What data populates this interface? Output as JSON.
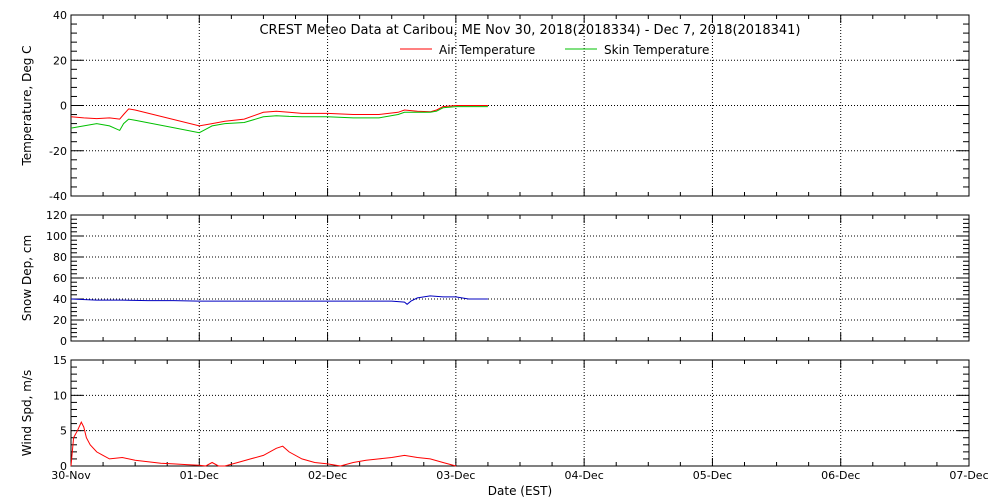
{
  "title": "CREST Meteo Data at Caribou, ME   Nov 30, 2018(2018334) - Dec  7, 2018(2018341)",
  "xlabel": "Date (EST)",
  "x_ticks": [
    "30-Nov",
    "01-Dec",
    "02-Dec",
    "03-Dec",
    "04-Dec",
    "05-Dec",
    "06-Dec",
    "07-Dec"
  ],
  "colors": {
    "air": "#ff0000",
    "skin": "#00c000",
    "snow": "#0000c0",
    "wind": "#ff0000",
    "axis": "#000000"
  },
  "chart_data": [
    {
      "type": "line",
      "ylabel": "Temperature, Deg C",
      "ylim": [
        -40,
        40
      ],
      "y_ticks": [
        "40",
        "20",
        "0",
        "-20",
        "-40"
      ],
      "xlim_days": [
        0,
        7
      ],
      "legend": "top-center",
      "grid": true,
      "series": [
        {
          "name": "Air Temperature",
          "x": [
            0,
            0.1,
            0.2,
            0.3,
            0.38,
            0.41,
            0.45,
            0.5,
            1.0,
            1.1,
            1.2,
            1.35,
            1.5,
            1.6,
            1.7,
            1.8,
            2.0,
            2.2,
            2.4,
            2.55,
            2.6,
            2.7,
            2.8,
            2.85,
            2.9,
            3.0,
            3.1,
            3.2,
            3.25
          ],
          "y": [
            -5,
            -5.5,
            -5.8,
            -5.5,
            -6,
            -4,
            -1.5,
            -2,
            -9,
            -8,
            -7,
            -6,
            -3,
            -2.5,
            -3,
            -3.5,
            -3.5,
            -4,
            -4,
            -3,
            -2,
            -2.5,
            -2.8,
            -2,
            -0.5,
            0,
            0,
            0,
            0
          ]
        },
        {
          "name": "Skin Temperature",
          "x": [
            0,
            0.1,
            0.2,
            0.3,
            0.38,
            0.41,
            0.45,
            0.5,
            1.0,
            1.1,
            1.2,
            1.35,
            1.5,
            1.6,
            1.7,
            1.8,
            2.0,
            2.2,
            2.4,
            2.55,
            2.6,
            2.7,
            2.8,
            2.85,
            2.9,
            3.0,
            3.1,
            3.2,
            3.25
          ],
          "y": [
            -10,
            -9,
            -8,
            -9,
            -11,
            -8,
            -6,
            -6.5,
            -12,
            -9,
            -8,
            -7.5,
            -5,
            -4.5,
            -4.8,
            -5,
            -5,
            -5.5,
            -5.5,
            -4,
            -3,
            -3,
            -3,
            -2.5,
            -1,
            -0.5,
            -0.5,
            -0.5,
            -0.5
          ]
        }
      ]
    },
    {
      "type": "line",
      "ylabel": "Snow Dep, cm",
      "ylim": [
        0,
        120
      ],
      "y_ticks": [
        "120",
        "100",
        "80",
        "60",
        "40",
        "20",
        "0"
      ],
      "xlim_days": [
        0,
        7
      ],
      "grid": true,
      "series": [
        {
          "x": [
            0,
            0.2,
            0.4,
            0.6,
            0.8,
            1.0,
            1.3,
            1.6,
            2.0,
            2.3,
            2.5,
            2.6,
            2.62,
            2.65,
            2.7,
            2.75,
            2.8,
            2.9,
            3.0,
            3.1,
            3.2,
            3.25
          ],
          "y": [
            40,
            39,
            39,
            38.5,
            38.5,
            38,
            38,
            38,
            38,
            38,
            38,
            37,
            35,
            38,
            41,
            42,
            43,
            42,
            42,
            40,
            40,
            40
          ]
        }
      ]
    },
    {
      "type": "line",
      "ylabel": "Wind Spd, m/s",
      "ylim": [
        0,
        15
      ],
      "y_ticks": [
        "15",
        "10",
        "5",
        "0"
      ],
      "xlim_days": [
        0,
        7
      ],
      "grid": true,
      "series": [
        {
          "x": [
            0,
            0.02,
            0.05,
            0.08,
            0.1,
            0.12,
            0.15,
            0.2,
            0.25,
            0.3,
            0.4,
            0.5,
            0.6,
            0.7,
            0.8,
            0.9,
            1.0,
            1.05,
            1.1,
            1.15,
            1.2,
            1.3,
            1.4,
            1.5,
            1.6,
            1.65,
            1.7,
            1.8,
            1.9,
            2.0,
            2.1,
            2.2,
            2.3,
            2.4,
            2.5,
            2.6,
            2.7,
            2.8,
            2.9,
            3.0
          ],
          "y": [
            0,
            4,
            5,
            6.2,
            5.5,
            4,
            3,
            2,
            1.5,
            1,
            1.2,
            0.8,
            0.6,
            0.4,
            0.3,
            0.2,
            0.1,
            0,
            0.5,
            0,
            0,
            0.5,
            1,
            1.5,
            2.5,
            2.8,
            2,
            1,
            0.5,
            0.3,
            0,
            0.5,
            0.8,
            1,
            1.2,
            1.5,
            1.2,
            1,
            0.5,
            0
          ]
        }
      ]
    }
  ]
}
